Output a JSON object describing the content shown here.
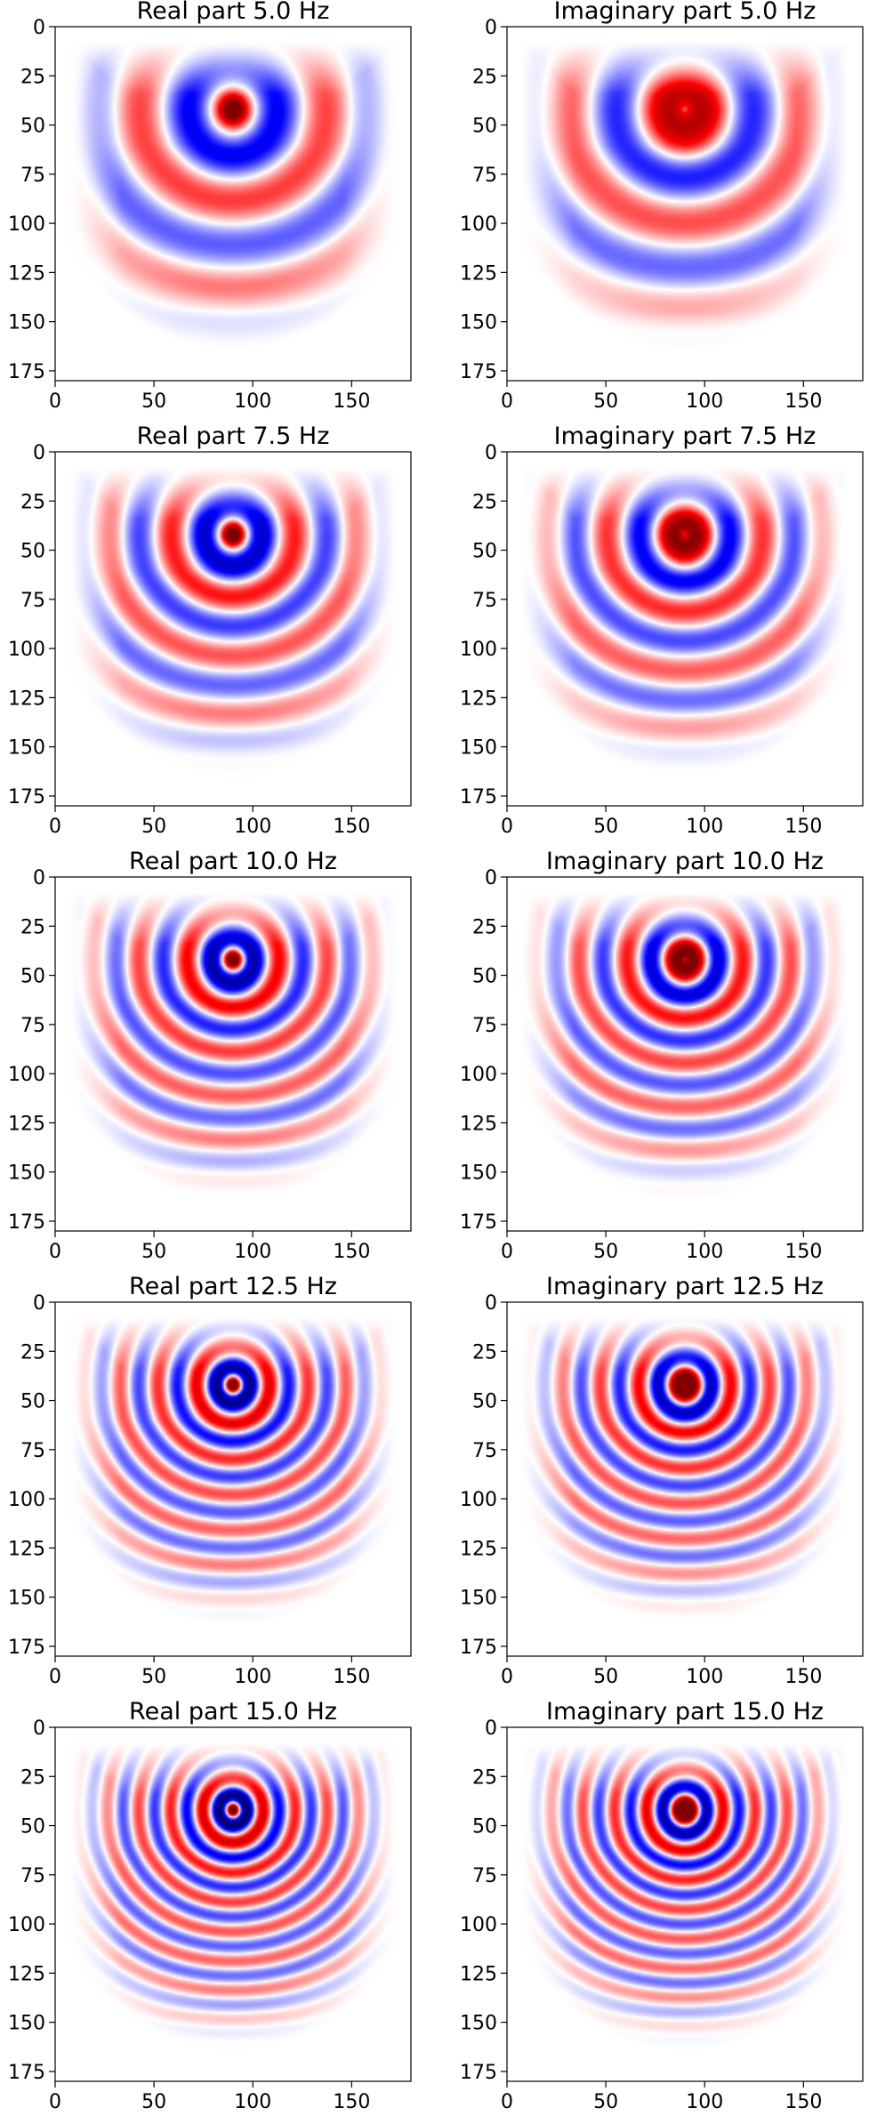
{
  "chart_data": [
    {
      "type": "heatmap",
      "title": "Real part 5.0 Hz",
      "frequency_hz": 5.0,
      "part": "real",
      "xlim": [
        0,
        180
      ],
      "ylim": [
        180,
        0
      ],
      "xticks": [
        0,
        50,
        100,
        150
      ],
      "yticks": [
        0,
        25,
        50,
        75,
        100,
        125,
        150,
        175
      ],
      "colormap": "seismic",
      "source_center": [
        90,
        42
      ]
    },
    {
      "type": "heatmap",
      "title": "Imaginary part 5.0 Hz",
      "frequency_hz": 5.0,
      "part": "imag",
      "xlim": [
        0,
        180
      ],
      "ylim": [
        180,
        0
      ],
      "xticks": [
        0,
        50,
        100,
        150
      ],
      "yticks": [
        0,
        25,
        50,
        75,
        100,
        125,
        150,
        175
      ],
      "colormap": "seismic",
      "source_center": [
        90,
        42
      ]
    },
    {
      "type": "heatmap",
      "title": "Real part 7.5 Hz",
      "frequency_hz": 7.5,
      "part": "real",
      "xlim": [
        0,
        180
      ],
      "ylim": [
        180,
        0
      ],
      "xticks": [
        0,
        50,
        100,
        150
      ],
      "yticks": [
        0,
        25,
        50,
        75,
        100,
        125,
        150,
        175
      ],
      "colormap": "seismic",
      "source_center": [
        90,
        42
      ]
    },
    {
      "type": "heatmap",
      "title": "Imaginary part 7.5 Hz",
      "frequency_hz": 7.5,
      "part": "imag",
      "xlim": [
        0,
        180
      ],
      "ylim": [
        180,
        0
      ],
      "xticks": [
        0,
        50,
        100,
        150
      ],
      "yticks": [
        0,
        25,
        50,
        75,
        100,
        125,
        150,
        175
      ],
      "colormap": "seismic",
      "source_center": [
        90,
        42
      ]
    },
    {
      "type": "heatmap",
      "title": "Real part 10.0 Hz",
      "frequency_hz": 10.0,
      "part": "real",
      "xlim": [
        0,
        180
      ],
      "ylim": [
        180,
        0
      ],
      "xticks": [
        0,
        50,
        100,
        150
      ],
      "yticks": [
        0,
        25,
        50,
        75,
        100,
        125,
        150,
        175
      ],
      "colormap": "seismic",
      "source_center": [
        90,
        42
      ]
    },
    {
      "type": "heatmap",
      "title": "Imaginary part 10.0 Hz",
      "frequency_hz": 10.0,
      "part": "imag",
      "xlim": [
        0,
        180
      ],
      "ylim": [
        180,
        0
      ],
      "xticks": [
        0,
        50,
        100,
        150
      ],
      "yticks": [
        0,
        25,
        50,
        75,
        100,
        125,
        150,
        175
      ],
      "colormap": "seismic",
      "source_center": [
        90,
        42
      ]
    },
    {
      "type": "heatmap",
      "title": "Real part 12.5 Hz",
      "frequency_hz": 12.5,
      "part": "real",
      "xlim": [
        0,
        180
      ],
      "ylim": [
        180,
        0
      ],
      "xticks": [
        0,
        50,
        100,
        150
      ],
      "yticks": [
        0,
        25,
        50,
        75,
        100,
        125,
        150,
        175
      ],
      "colormap": "seismic",
      "source_center": [
        90,
        42
      ]
    },
    {
      "type": "heatmap",
      "title": "Imaginary part 12.5 Hz",
      "frequency_hz": 12.5,
      "part": "imag",
      "xlim": [
        0,
        180
      ],
      "ylim": [
        180,
        0
      ],
      "xticks": [
        0,
        50,
        100,
        150
      ],
      "yticks": [
        0,
        25,
        50,
        75,
        100,
        125,
        150,
        175
      ],
      "colormap": "seismic",
      "source_center": [
        90,
        42
      ]
    },
    {
      "type": "heatmap",
      "title": "Real part 15.0 Hz",
      "frequency_hz": 15.0,
      "part": "real",
      "xlim": [
        0,
        180
      ],
      "ylim": [
        180,
        0
      ],
      "xticks": [
        0,
        50,
        100,
        150
      ],
      "yticks": [
        0,
        25,
        50,
        75,
        100,
        125,
        150,
        175
      ],
      "colormap": "seismic",
      "source_center": [
        90,
        42
      ]
    },
    {
      "type": "heatmap",
      "title": "Imaginary part 15.0 Hz",
      "frequency_hz": 15.0,
      "part": "imag",
      "xlim": [
        0,
        180
      ],
      "ylim": [
        180,
        0
      ],
      "xticks": [
        0,
        50,
        100,
        150
      ],
      "yticks": [
        0,
        25,
        50,
        75,
        100,
        125,
        150,
        175
      ],
      "colormap": "seismic",
      "source_center": [
        90,
        42
      ]
    }
  ]
}
